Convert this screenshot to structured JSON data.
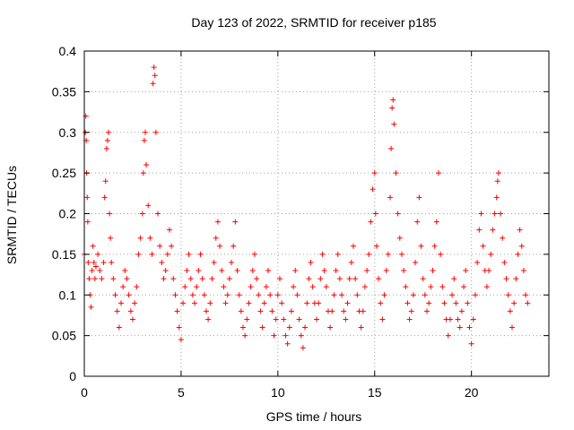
{
  "chart_data": {
    "type": "scatter",
    "title": "Day 123 of 2022, SRMTID for receiver p185",
    "xlabel": "GPS time / hours",
    "ylabel": "SRMTID / TECUs",
    "xlim": [
      0,
      24
    ],
    "ylim": [
      0,
      0.4
    ],
    "xticks": [
      0,
      5,
      10,
      15,
      20
    ],
    "xtick_labels": [
      "0",
      "5",
      "10",
      "15",
      "20"
    ],
    "yticks": [
      0,
      0.05,
      0.1,
      0.15,
      0.2,
      0.25,
      0.3,
      0.35,
      0.4
    ],
    "ytick_labels": [
      "0",
      "0.05",
      "0.1",
      "0.15",
      "0.2",
      "0.25",
      "0.3",
      "0.35",
      "0.4"
    ],
    "grid": true,
    "marker": "+",
    "color": "#ff0000",
    "series": [
      {
        "name": "SRMTID",
        "points": [
          [
            0.0,
            0.15
          ],
          [
            0.05,
            0.3
          ],
          [
            0.08,
            0.32
          ],
          [
            0.1,
            0.29
          ],
          [
            0.12,
            0.25
          ],
          [
            0.15,
            0.22
          ],
          [
            0.18,
            0.19
          ],
          [
            0.2,
            0.14
          ],
          [
            0.25,
            0.12
          ],
          [
            0.3,
            0.1
          ],
          [
            0.35,
            0.085
          ],
          [
            0.4,
            0.13
          ],
          [
            0.45,
            0.16
          ],
          [
            0.5,
            0.14
          ],
          [
            0.55,
            0.12
          ],
          [
            0.6,
            0.135
          ],
          [
            0.7,
            0.15
          ],
          [
            0.8,
            0.13
          ],
          [
            0.9,
            0.12
          ],
          [
            1.0,
            0.14
          ],
          [
            1.05,
            0.22
          ],
          [
            1.1,
            0.24
          ],
          [
            1.15,
            0.28
          ],
          [
            1.2,
            0.29
          ],
          [
            1.25,
            0.3
          ],
          [
            1.3,
            0.2
          ],
          [
            1.35,
            0.17
          ],
          [
            1.4,
            0.14
          ],
          [
            1.5,
            0.12
          ],
          [
            1.6,
            0.1
          ],
          [
            1.7,
            0.08
          ],
          [
            1.8,
            0.06
          ],
          [
            1.9,
            0.09
          ],
          [
            2.0,
            0.11
          ],
          [
            2.1,
            0.13
          ],
          [
            2.2,
            0.12
          ],
          [
            2.3,
            0.1
          ],
          [
            2.4,
            0.08
          ],
          [
            2.5,
            0.07
          ],
          [
            2.6,
            0.09
          ],
          [
            2.7,
            0.11
          ],
          [
            2.8,
            0.15
          ],
          [
            2.9,
            0.17
          ],
          [
            3.0,
            0.2
          ],
          [
            3.05,
            0.25
          ],
          [
            3.1,
            0.29
          ],
          [
            3.15,
            0.3
          ],
          [
            3.2,
            0.26
          ],
          [
            3.3,
            0.21
          ],
          [
            3.4,
            0.17
          ],
          [
            3.5,
            0.15
          ],
          [
            3.55,
            0.36
          ],
          [
            3.6,
            0.38
          ],
          [
            3.65,
            0.37
          ],
          [
            3.7,
            0.3
          ],
          [
            3.8,
            0.2
          ],
          [
            3.9,
            0.16
          ],
          [
            4.0,
            0.14
          ],
          [
            4.1,
            0.12
          ],
          [
            4.2,
            0.13
          ],
          [
            4.3,
            0.15
          ],
          [
            4.4,
            0.18
          ],
          [
            4.5,
            0.16
          ],
          [
            4.6,
            0.12
          ],
          [
            4.7,
            0.1
          ],
          [
            4.8,
            0.08
          ],
          [
            4.9,
            0.06
          ],
          [
            5.0,
            0.045
          ],
          [
            5.1,
            0.09
          ],
          [
            5.2,
            0.11
          ],
          [
            5.3,
            0.13
          ],
          [
            5.4,
            0.15
          ],
          [
            5.5,
            0.12
          ],
          [
            5.6,
            0.1
          ],
          [
            5.7,
            0.09
          ],
          [
            5.8,
            0.11
          ],
          [
            5.9,
            0.13
          ],
          [
            6.0,
            0.15
          ],
          [
            6.1,
            0.12
          ],
          [
            6.2,
            0.1
          ],
          [
            6.3,
            0.08
          ],
          [
            6.4,
            0.07
          ],
          [
            6.5,
            0.09
          ],
          [
            6.6,
            0.12
          ],
          [
            6.7,
            0.14
          ],
          [
            6.8,
            0.17
          ],
          [
            6.9,
            0.19
          ],
          [
            7.0,
            0.16
          ],
          [
            7.1,
            0.13
          ],
          [
            7.2,
            0.11
          ],
          [
            7.3,
            0.09
          ],
          [
            7.4,
            0.1
          ],
          [
            7.5,
            0.12
          ],
          [
            7.6,
            0.14
          ],
          [
            7.7,
            0.16
          ],
          [
            7.8,
            0.19
          ],
          [
            7.9,
            0.13
          ],
          [
            8.0,
            0.1
          ],
          [
            8.1,
            0.08
          ],
          [
            8.2,
            0.06
          ],
          [
            8.3,
            0.05
          ],
          [
            8.4,
            0.07
          ],
          [
            8.5,
            0.09
          ],
          [
            8.6,
            0.11
          ],
          [
            8.7,
            0.13
          ],
          [
            8.8,
            0.15
          ],
          [
            8.9,
            0.12
          ],
          [
            9.0,
            0.1
          ],
          [
            9.1,
            0.08
          ],
          [
            9.2,
            0.06
          ],
          [
            9.3,
            0.09
          ],
          [
            9.4,
            0.11
          ],
          [
            9.5,
            0.13
          ],
          [
            9.6,
            0.1
          ],
          [
            9.7,
            0.08
          ],
          [
            9.8,
            0.05
          ],
          [
            9.9,
            0.07
          ],
          [
            10.0,
            0.1
          ],
          [
            10.1,
            0.12
          ],
          [
            10.2,
            0.09
          ],
          [
            10.3,
            0.07
          ],
          [
            10.4,
            0.05
          ],
          [
            10.5,
            0.04
          ],
          [
            10.6,
            0.06
          ],
          [
            10.7,
            0.08
          ],
          [
            10.8,
            0.11
          ],
          [
            10.9,
            0.13
          ],
          [
            11.0,
            0.1
          ],
          [
            11.1,
            0.07
          ],
          [
            11.2,
            0.05
          ],
          [
            11.3,
            0.035
          ],
          [
            11.4,
            0.06
          ],
          [
            11.5,
            0.09
          ],
          [
            11.6,
            0.12
          ],
          [
            11.7,
            0.14
          ],
          [
            11.8,
            0.11
          ],
          [
            11.9,
            0.09
          ],
          [
            12.0,
            0.07
          ],
          [
            12.1,
            0.09
          ],
          [
            12.2,
            0.12
          ],
          [
            12.3,
            0.15
          ],
          [
            12.4,
            0.13
          ],
          [
            12.5,
            0.11
          ],
          [
            12.6,
            0.08
          ],
          [
            12.7,
            0.06
          ],
          [
            12.8,
            0.08
          ],
          [
            12.9,
            0.1
          ],
          [
            13.0,
            0.13
          ],
          [
            13.1,
            0.15
          ],
          [
            13.2,
            0.12
          ],
          [
            13.3,
            0.1
          ],
          [
            13.4,
            0.08
          ],
          [
            13.5,
            0.07
          ],
          [
            13.6,
            0.09
          ],
          [
            13.7,
            0.12
          ],
          [
            13.8,
            0.14
          ],
          [
            13.9,
            0.16
          ],
          [
            14.0,
            0.12
          ],
          [
            14.1,
            0.1
          ],
          [
            14.2,
            0.08
          ],
          [
            14.3,
            0.06
          ],
          [
            14.4,
            0.08
          ],
          [
            14.5,
            0.11
          ],
          [
            14.6,
            0.13
          ],
          [
            14.7,
            0.15
          ],
          [
            14.8,
            0.19
          ],
          [
            14.9,
            0.23
          ],
          [
            15.0,
            0.25
          ],
          [
            15.05,
            0.2
          ],
          [
            15.1,
            0.16
          ],
          [
            15.2,
            0.12
          ],
          [
            15.3,
            0.09
          ],
          [
            15.4,
            0.07
          ],
          [
            15.5,
            0.1
          ],
          [
            15.6,
            0.13
          ],
          [
            15.7,
            0.15
          ],
          [
            15.8,
            0.22
          ],
          [
            15.85,
            0.28
          ],
          [
            15.9,
            0.33
          ],
          [
            15.95,
            0.34
          ],
          [
            16.0,
            0.31
          ],
          [
            16.1,
            0.25
          ],
          [
            16.2,
            0.2
          ],
          [
            16.3,
            0.17
          ],
          [
            16.4,
            0.15
          ],
          [
            16.5,
            0.13
          ],
          [
            16.6,
            0.11
          ],
          [
            16.7,
            0.09
          ],
          [
            16.8,
            0.07
          ],
          [
            16.9,
            0.08
          ],
          [
            17.0,
            0.1
          ],
          [
            17.1,
            0.14
          ],
          [
            17.2,
            0.19
          ],
          [
            17.3,
            0.22
          ],
          [
            17.4,
            0.16
          ],
          [
            17.5,
            0.12
          ],
          [
            17.6,
            0.1
          ],
          [
            17.7,
            0.08
          ],
          [
            17.8,
            0.09
          ],
          [
            17.9,
            0.11
          ],
          [
            18.0,
            0.13
          ],
          [
            18.1,
            0.16
          ],
          [
            18.2,
            0.19
          ],
          [
            18.3,
            0.25
          ],
          [
            18.4,
            0.15
          ],
          [
            18.5,
            0.11
          ],
          [
            18.6,
            0.09
          ],
          [
            18.7,
            0.07
          ],
          [
            18.8,
            0.05
          ],
          [
            18.9,
            0.07
          ],
          [
            19.0,
            0.1
          ],
          [
            19.1,
            0.12
          ],
          [
            19.2,
            0.09
          ],
          [
            19.3,
            0.07
          ],
          [
            19.4,
            0.06
          ],
          [
            19.5,
            0.08
          ],
          [
            19.6,
            0.11
          ],
          [
            19.7,
            0.13
          ],
          [
            19.8,
            0.09
          ],
          [
            19.9,
            0.06
          ],
          [
            20.0,
            0.04
          ],
          [
            20.1,
            0.07
          ],
          [
            20.2,
            0.1
          ],
          [
            20.3,
            0.14
          ],
          [
            20.4,
            0.18
          ],
          [
            20.5,
            0.2
          ],
          [
            20.6,
            0.16
          ],
          [
            20.7,
            0.13
          ],
          [
            20.8,
            0.11
          ],
          [
            20.9,
            0.13
          ],
          [
            21.0,
            0.15
          ],
          [
            21.1,
            0.18
          ],
          [
            21.2,
            0.2
          ],
          [
            21.3,
            0.22
          ],
          [
            21.35,
            0.24
          ],
          [
            21.4,
            0.25
          ],
          [
            21.5,
            0.2
          ],
          [
            21.6,
            0.17
          ],
          [
            21.7,
            0.14
          ],
          [
            21.8,
            0.12
          ],
          [
            21.9,
            0.1
          ],
          [
            22.0,
            0.08
          ],
          [
            22.1,
            0.06
          ],
          [
            22.2,
            0.09
          ],
          [
            22.3,
            0.12
          ],
          [
            22.4,
            0.15
          ],
          [
            22.5,
            0.18
          ],
          [
            22.6,
            0.16
          ],
          [
            22.7,
            0.13
          ],
          [
            22.8,
            0.1
          ],
          [
            22.9,
            0.09
          ]
        ]
      }
    ]
  }
}
